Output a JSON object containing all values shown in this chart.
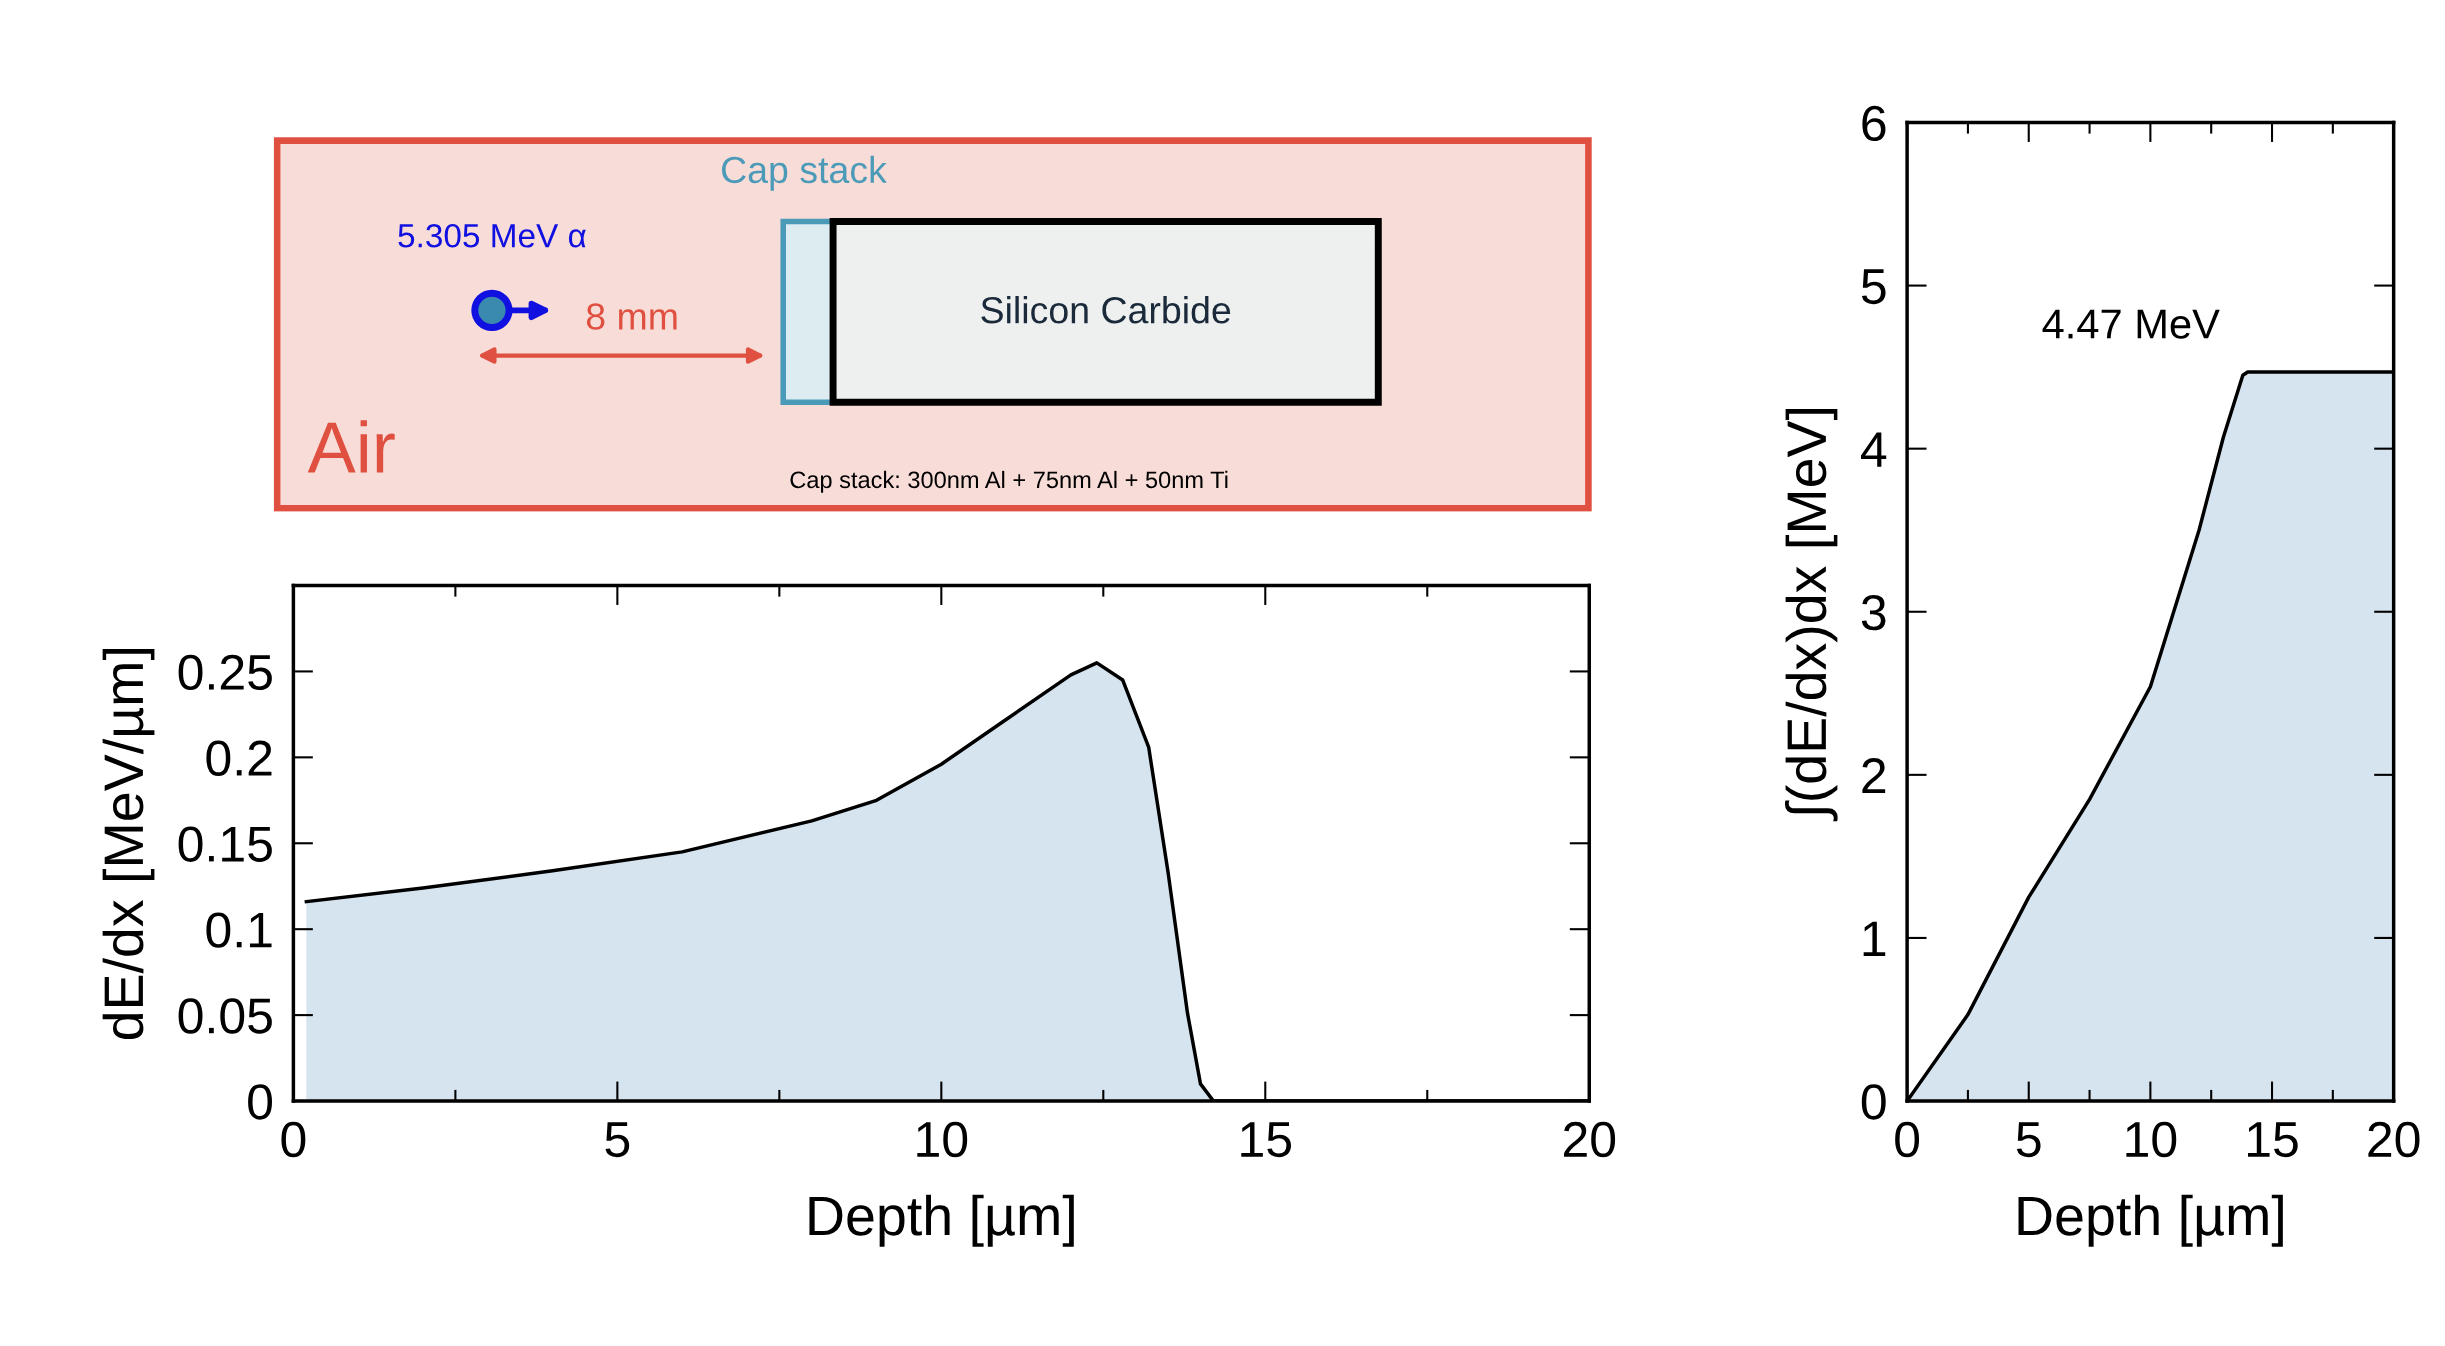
{
  "chart_data": [
    {
      "type": "other",
      "annotations": [
        "Cap stack",
        "5.305 MeV α",
        "8 mm",
        "Silicon Carbide",
        "Air",
        "Cap stack: 300nm Al + 75nm Al + 50nm Ti"
      ]
    },
    {
      "type": "area",
      "xlabel": "Depth [µm]",
      "ylabel": "dE/dx [MeV/µm]",
      "x": [
        0.2,
        2,
        4,
        6,
        8,
        9,
        10,
        11,
        12,
        12.4,
        12.8,
        13.2,
        13.5,
        13.8,
        14.0,
        14.2,
        20
      ],
      "series": [
        {
          "color": "#d6e4f0",
          "values": [
            0.116,
            0.124,
            0.134,
            0.145,
            0.163,
            0.175,
            0.196,
            0.222,
            0.248,
            0.255,
            0.245,
            0.206,
            0.133,
            0.051,
            0.01,
            0,
            0
          ]
        }
      ],
      "xlim": [
        0,
        20
      ],
      "xticks": [
        0,
        5,
        10,
        15,
        20
      ],
      "ylim": [
        0,
        0.3
      ],
      "yticks": [
        0,
        0.05,
        0.1,
        0.15,
        0.2,
        0.25
      ]
    },
    {
      "type": "area",
      "xlabel": "Depth [µm]",
      "ylabel": "∫(dE/dx)dx [MeV]",
      "x": [
        0,
        2.5,
        5,
        7.5,
        10,
        12,
        13,
        13.8,
        14,
        20
      ],
      "series": [
        {
          "color": "#d6e4f0",
          "values": [
            0,
            0.53,
            1.25,
            1.85,
            2.54,
            3.5,
            4.07,
            4.45,
            4.47,
            4.47
          ]
        }
      ],
      "annotations": [
        {
          "text": "4.47 MeV",
          "x": 14,
          "y": 4.47
        }
      ],
      "xlim": [
        0,
        20
      ],
      "xticks": [
        0,
        5,
        10,
        15,
        20
      ],
      "ylim": [
        0,
        6
      ],
      "yticks": [
        0,
        1,
        2,
        3,
        4,
        5,
        6
      ]
    }
  ]
}
